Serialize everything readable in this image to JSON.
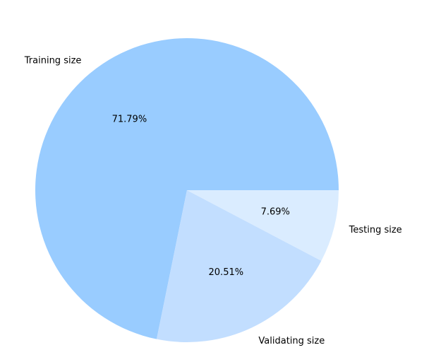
{
  "chart_data": {
    "type": "pie",
    "slices": [
      {
        "label": "Training size",
        "pct_label": "71.79%",
        "value": 71.79,
        "color": "#99ccff"
      },
      {
        "label": "Validating size",
        "pct_label": "20.51%",
        "value": 20.51,
        "color": "#c2deff"
      },
      {
        "label": "Testing size",
        "pct_label": "7.69%",
        "value": 7.69,
        "color": "#daecff"
      }
    ],
    "start_angle_deg": 0,
    "direction": "counterclockwise",
    "legend": "none"
  }
}
